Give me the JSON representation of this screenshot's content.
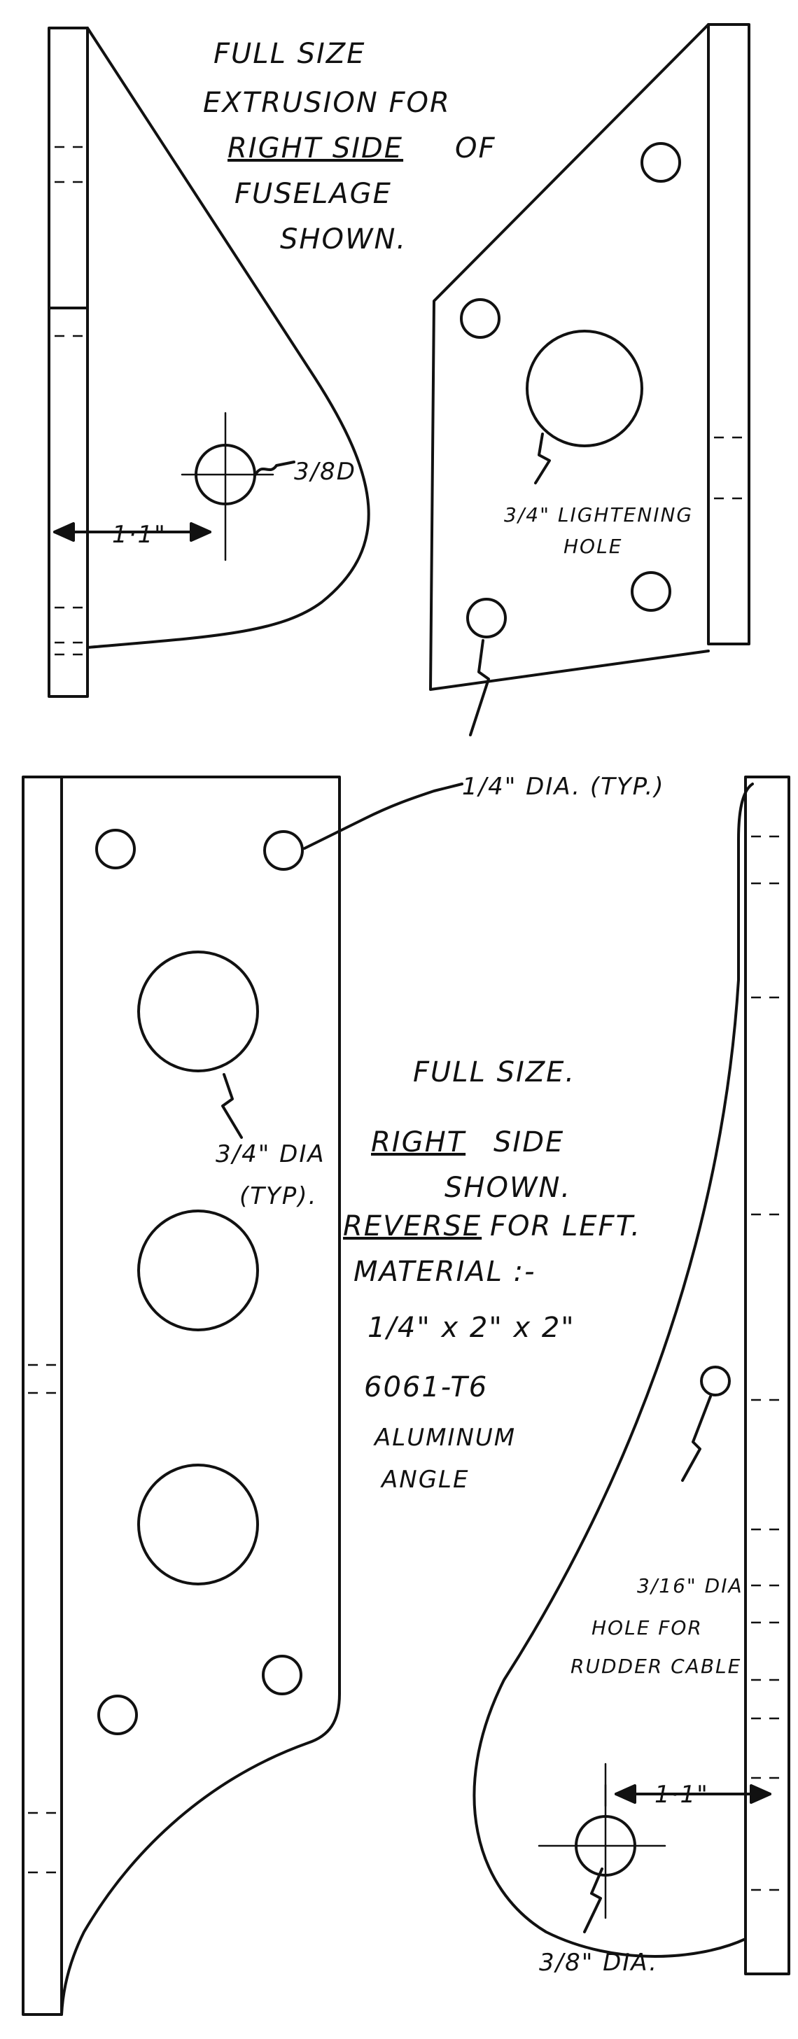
{
  "notes": {
    "top_title_1": "FULL SIZE",
    "top_title_2": "EXTRUSION FOR",
    "top_title_3a": "RIGHT SIDE",
    "top_title_3b": "OF",
    "top_title_4": "FUSELAGE",
    "top_title_5": "SHOWN.",
    "dim_bolt_top": "3/8D",
    "dim_edge_top": "1·1\"",
    "lightening_1": "3/4\" LIGHTENING",
    "lightening_2": "HOLE",
    "quarter_dia": "1/4\" DIA. (TYP.)",
    "full_size": "FULL SIZE.",
    "right_side_a": "RIGHT",
    "right_side_b": "SIDE",
    "shown": "SHOWN.",
    "reverse_a": "REVERSE",
    "reverse_b": "FOR LEFT.",
    "material": "MATERIAL :-",
    "angle_size": "1/4\" x 2\" x 2\"",
    "alloy": "6061-T6",
    "aluminum": "ALUMINUM",
    "angle": "ANGLE",
    "three_quarter_dia": "3/4\" DIA",
    "typ": "(TYP).",
    "three_sixteenth": "3/16\" DIA",
    "rudder_1": "HOLE FOR",
    "rudder_2": "RUDDER CABLE",
    "dim_edge_bottom": "1·1\"",
    "bolt_bottom": "3/8\" DIA."
  }
}
